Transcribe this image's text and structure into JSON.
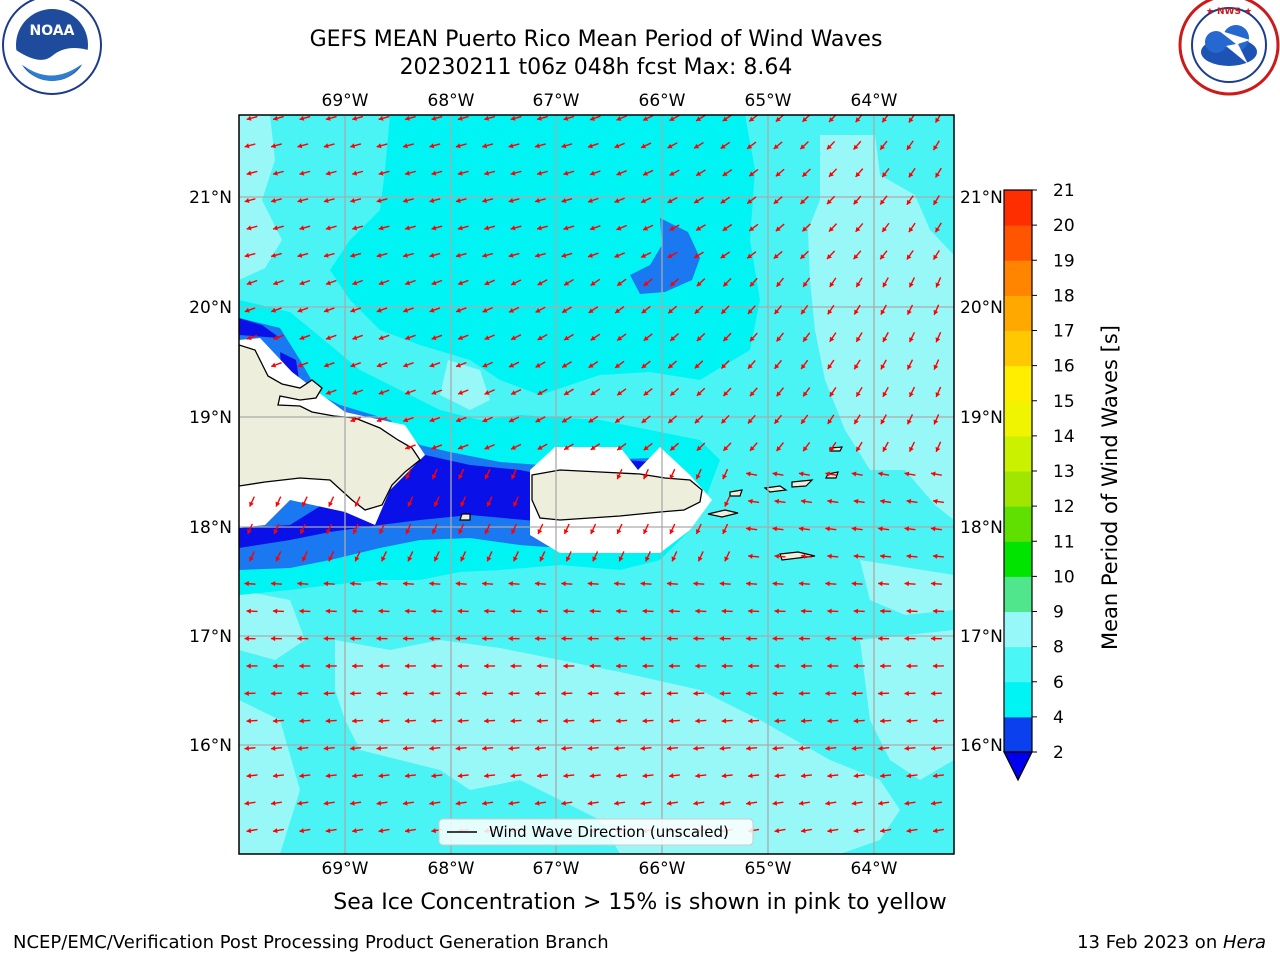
{
  "title_line1": "GEFS MEAN Puerto Rico Mean Period of Wind Waves",
  "title_line2": "20230211 t06z 048h fcst   Max: 8.64",
  "ice_note": "Sea Ice Concentration > 15% is shown in pink to yellow",
  "footer_left": "NCEP/EMC/Verification Post Processing Product Generation Branch",
  "footer_right_date": "13 Feb 2023 on ",
  "footer_right_machine": "Hera",
  "logos": {
    "noaa_text": "NOAA",
    "noaa_ring": "NATIONAL OCEANIC AND ATMOSPHERIC ADMINISTRATION · U.S. DEPARTMENT OF COMMERCE",
    "nws_ring": "NATIONAL WEATHER SERVICE"
  },
  "legend_label": "Wind Wave Direction (unscaled)",
  "colorbar": {
    "title": "Mean Period of Wind Waves [s]",
    "ticks": [
      "2",
      "4",
      "6",
      "8",
      "9",
      "10",
      "11",
      "12",
      "13",
      "14",
      "15",
      "16",
      "17",
      "18",
      "19",
      "20",
      "21"
    ],
    "colors": [
      "#0a40ee",
      "#00f4f4",
      "#4af6f6",
      "#96f8f8",
      "#50e68c",
      "#00e400",
      "#60e000",
      "#a0e600",
      "#caf200",
      "#f0f400",
      "#ffee00",
      "#ffc800",
      "#ffa800",
      "#ff8400",
      "#ff5400",
      "#ff2e00"
    ],
    "under_color": "#0000ee"
  },
  "map": {
    "lon_labels": [
      "69°W",
      "68°W",
      "67°W",
      "66°W",
      "65°W",
      "64°W"
    ],
    "lat_labels": [
      "21°N",
      "20°N",
      "19°N",
      "18°N",
      "17°N",
      "16°N"
    ],
    "fill_colors": {
      "base": "#4af4f4",
      "light": "#98f7f7",
      "mid": "#00f4f4",
      "blue": "#1a78f0",
      "deep": "#0a10e8",
      "land": "#eeeedc",
      "mask": "#ffffff"
    },
    "arrow_color": "#ff0000"
  }
}
